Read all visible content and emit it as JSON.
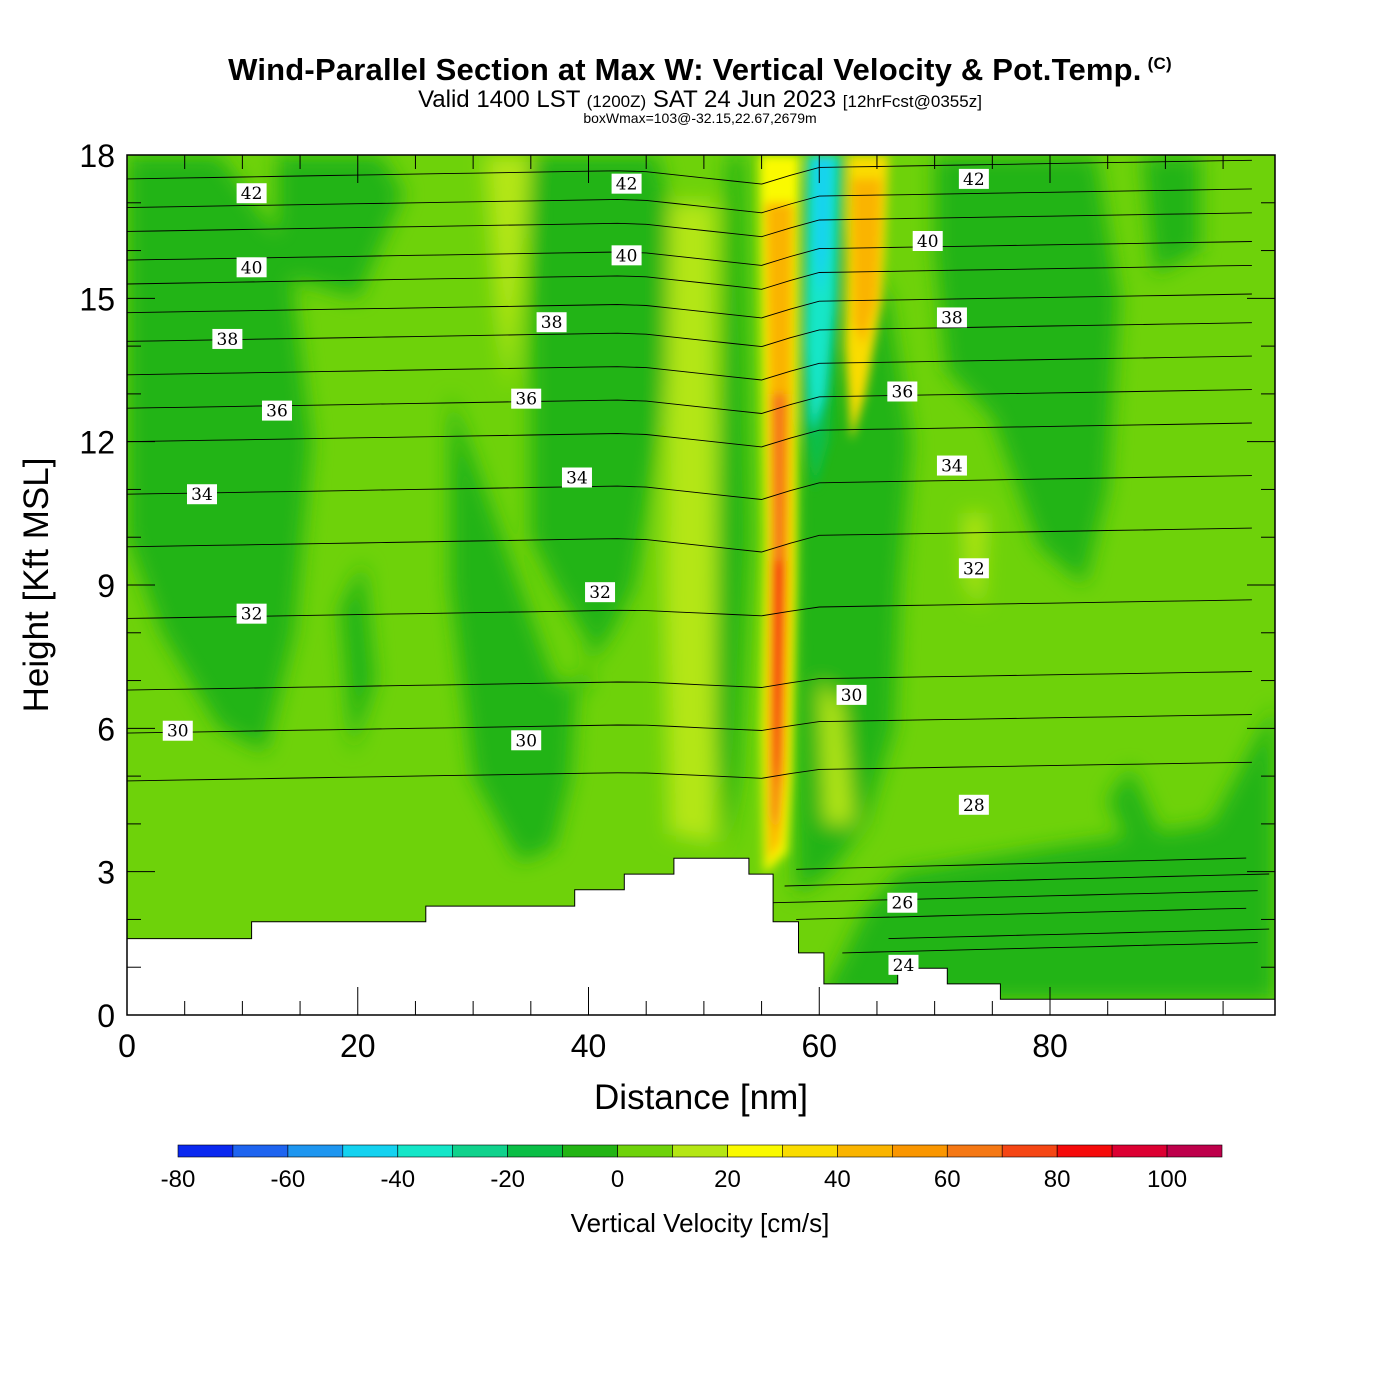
{
  "header": {
    "title": "Wind-Parallel Section at Max W: Vertical Velocity & Pot.Temp.",
    "copyright": "(C)",
    "valid_prefix": "Valid 1400 LST",
    "valid_utc": "(1200Z)",
    "valid_date": "SAT 24 Jun 2023",
    "forecast": "[12hrFcst@0355z]",
    "box_info": "boxWmax=103@-32.15,22.67,2679m"
  },
  "chart_data": {
    "type": "heatmap",
    "xlabel": "Distance [nm]",
    "ylabel": "Height [Kft MSL]",
    "xlim": [
      0,
      99.5
    ],
    "ylim": [
      0,
      18
    ],
    "xticks": [
      0,
      20,
      40,
      60,
      80
    ],
    "yticks": [
      0,
      3,
      6,
      9,
      12,
      15,
      18
    ],
    "colorbar": {
      "label": "Vertical Velocity [cm/s]",
      "ticks": [
        -80,
        -60,
        -40,
        -20,
        0,
        20,
        40,
        60,
        80,
        100
      ],
      "levels": [
        -80,
        -70,
        -60,
        -50,
        -40,
        -30,
        -20,
        -10,
        0,
        10,
        20,
        30,
        40,
        50,
        60,
        70,
        80,
        90,
        100,
        110
      ],
      "colors": [
        "#0a28f0",
        "#1e64f0",
        "#1e96f0",
        "#14d2f0",
        "#14e6c8",
        "#10d28c",
        "#0abe46",
        "#23b414",
        "#6ed20a",
        "#b4e614",
        "#fafa00",
        "#fadc00",
        "#fab400",
        "#fa9600",
        "#f57814",
        "#f54614",
        "#f50a0a",
        "#dc0032",
        "#be004b"
      ]
    },
    "terrain": [
      [
        0,
        1.6
      ],
      [
        10.8,
        1.6
      ],
      [
        10.8,
        1.95
      ],
      [
        25.9,
        1.95
      ],
      [
        25.9,
        2.28
      ],
      [
        38.8,
        2.28
      ],
      [
        38.8,
        2.62
      ],
      [
        43.1,
        2.62
      ],
      [
        43.1,
        2.95
      ],
      [
        47.4,
        2.95
      ],
      [
        47.4,
        3.28
      ],
      [
        53.9,
        3.28
      ],
      [
        53.9,
        2.95
      ],
      [
        56.0,
        2.95
      ],
      [
        56.0,
        1.95
      ],
      [
        58.2,
        1.95
      ],
      [
        58.2,
        1.3
      ],
      [
        60.4,
        1.3
      ],
      [
        60.4,
        0.65
      ],
      [
        66.8,
        0.65
      ],
      [
        66.8,
        0.98
      ],
      [
        71.1,
        0.98
      ],
      [
        71.1,
        0.65
      ],
      [
        75.7,
        0.65
      ],
      [
        75.7,
        0.33
      ],
      [
        99.5,
        0.33
      ]
    ],
    "theta_contours": [
      {
        "label": "24",
        "x": 67.3,
        "y": 1.05
      },
      {
        "label": "26",
        "x": 67.2,
        "y": 2.35
      },
      {
        "label": "28",
        "x": 73.4,
        "y": 4.4
      },
      {
        "label": "30",
        "x": 4.4,
        "y": 5.95
      },
      {
        "label": "30",
        "x": 34.6,
        "y": 5.75
      },
      {
        "label": "30",
        "x": 62.8,
        "y": 6.7
      },
      {
        "label": "32",
        "x": 10.8,
        "y": 8.4
      },
      {
        "label": "32",
        "x": 41.0,
        "y": 8.85
      },
      {
        "label": "32",
        "x": 73.4,
        "y": 9.35
      },
      {
        "label": "34",
        "x": 6.5,
        "y": 10.9
      },
      {
        "label": "34",
        "x": 39.0,
        "y": 11.25
      },
      {
        "label": "34",
        "x": 71.5,
        "y": 11.5
      },
      {
        "label": "36",
        "x": 13.0,
        "y": 12.65
      },
      {
        "label": "36",
        "x": 34.6,
        "y": 12.9
      },
      {
        "label": "36",
        "x": 67.2,
        "y": 13.05
      },
      {
        "label": "38",
        "x": 8.7,
        "y": 14.15
      },
      {
        "label": "38",
        "x": 36.8,
        "y": 14.5
      },
      {
        "label": "38",
        "x": 71.5,
        "y": 14.6
      },
      {
        "label": "40",
        "x": 10.8,
        "y": 15.65
      },
      {
        "label": "40",
        "x": 43.3,
        "y": 15.9
      },
      {
        "label": "40",
        "x": 69.4,
        "y": 16.2
      },
      {
        "label": "42",
        "x": 10.8,
        "y": 17.2
      },
      {
        "label": "42",
        "x": 43.3,
        "y": 17.4
      },
      {
        "label": "42",
        "x": 73.4,
        "y": 17.5
      }
    ],
    "max_updraft": {
      "value": 103,
      "x": 56.0,
      "y": 6.8
    }
  }
}
